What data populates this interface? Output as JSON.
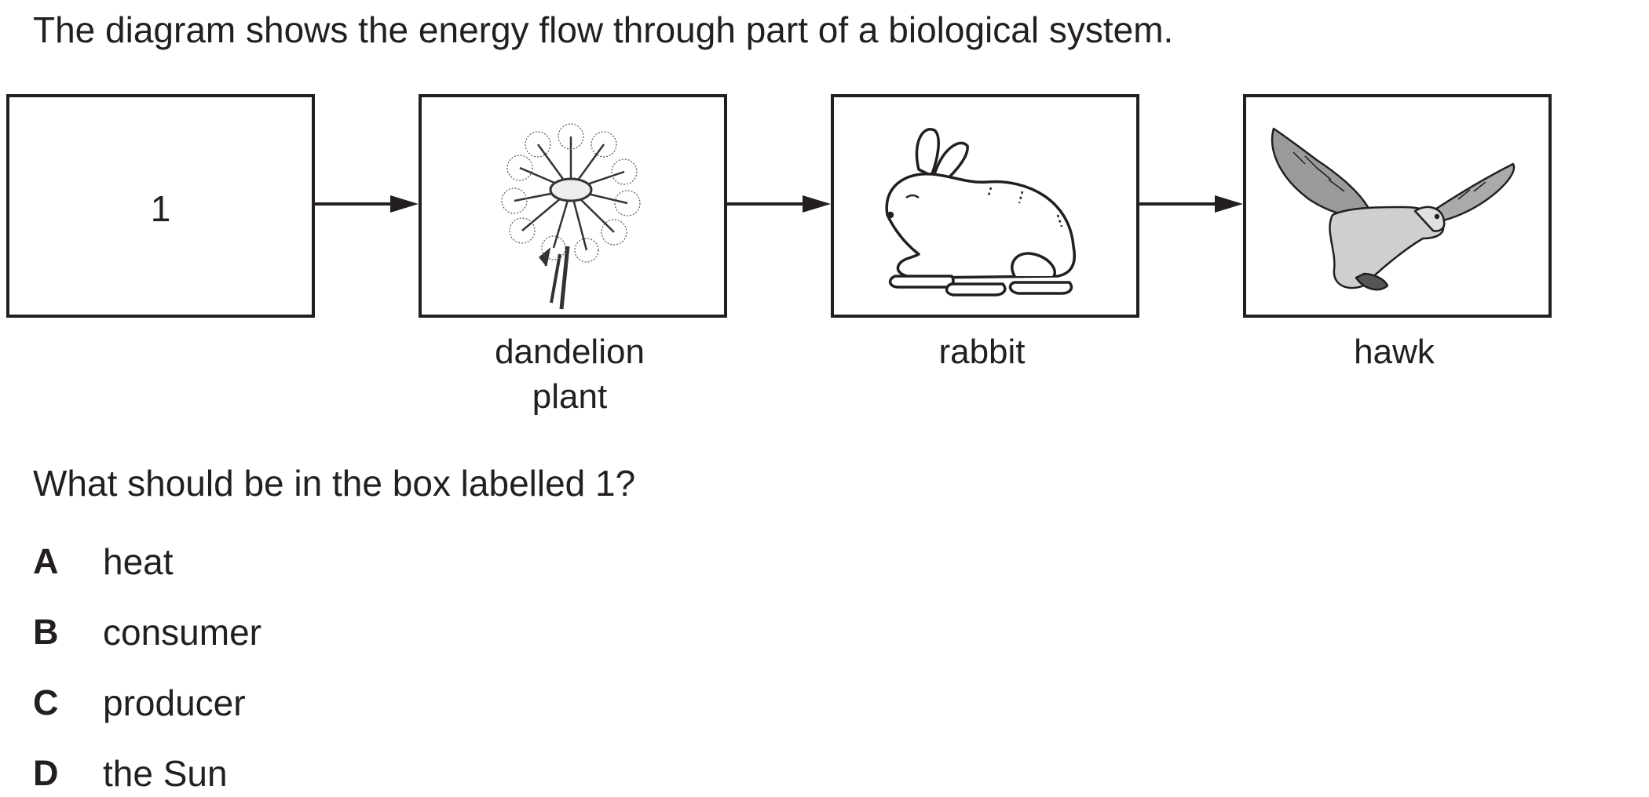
{
  "intro": "The diagram shows the energy flow through part of a biological system.",
  "diagram": {
    "boxes": [
      {
        "id": "box-1",
        "label": "1",
        "icon": "blank-box",
        "caption": []
      },
      {
        "id": "dandelion",
        "label": "",
        "icon": "dandelion-icon",
        "caption": [
          "dandelion",
          "plant"
        ]
      },
      {
        "id": "rabbit",
        "label": "",
        "icon": "rabbit-icon",
        "caption": [
          "rabbit"
        ]
      },
      {
        "id": "hawk",
        "label": "",
        "icon": "hawk-icon",
        "caption": [
          "hawk"
        ]
      }
    ],
    "line_color": "#231f20"
  },
  "question": "What should be in the box labelled 1?",
  "options": [
    {
      "letter": "A",
      "text": "heat"
    },
    {
      "letter": "B",
      "text": "consumer"
    },
    {
      "letter": "C",
      "text": "producer"
    },
    {
      "letter": "D",
      "text": "the Sun"
    }
  ]
}
